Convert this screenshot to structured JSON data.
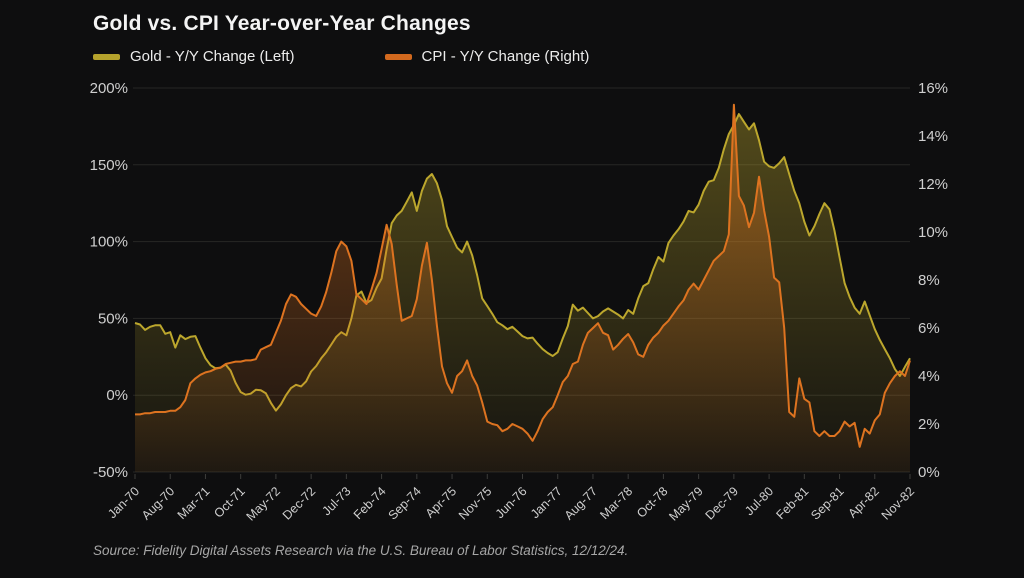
{
  "title": "Gold vs. CPI Year-over-Year Changes",
  "legend": [
    {
      "label": "Gold - Y/Y Change (Left)",
      "color": "#b5a22c"
    },
    {
      "label": "CPI - Y/Y Change (Right)",
      "color": "#d2691e"
    }
  ],
  "source": "Source: Fidelity Digital Assets Research via the U.S. Bureau of Labor Statistics, 12/12/24.",
  "colors": {
    "background": "#0e0e0f",
    "gridline": "#272725",
    "axis_text": "#cfcfcf",
    "gold_line": "#bca72d",
    "cpi_line": "#dd7320"
  },
  "chart_data": {
    "type": "line",
    "title": "Gold vs. CPI Year-over-Year Changes",
    "x_start": "Jan-1970",
    "x_end": "Nov-1982",
    "x_tick_every_months": 7,
    "x_labels": [
      "Jan-70",
      "Aug-70",
      "Mar-71",
      "Oct-71",
      "May-72",
      "Dec-72",
      "Jul-73",
      "Feb-74",
      "Sep-74",
      "Apr-75",
      "Nov-75",
      "Jun-76",
      "Jan-77",
      "Aug-77",
      "Mar-78",
      "Oct-78",
      "May-79",
      "Dec-79",
      "Jul-80",
      "Feb-81",
      "Sep-81",
      "Apr-82",
      "Nov-82"
    ],
    "left_axis": {
      "min": -50,
      "max": 200,
      "tick_values": [
        200,
        150,
        100,
        50,
        0,
        -50
      ],
      "tick_labels": [
        "200%",
        "150%",
        "100%",
        "50%",
        "0%",
        "-50%"
      ]
    },
    "right_axis": {
      "min": 0,
      "max": 16,
      "tick_values": [
        16,
        14,
        12,
        10,
        8,
        6,
        4,
        2,
        0
      ],
      "tick_labels": [
        "16%",
        "14%",
        "12%",
        "10%",
        "8%",
        "6%",
        "4%",
        "2%",
        "0%"
      ]
    },
    "grid": "horizontal-only",
    "legend_position": "top-left",
    "series": [
      {
        "name": "Gold - Y/Y Change (Left)",
        "axis": "left",
        "unit": "%",
        "color": "#bca72d",
        "values": [
          47,
          46,
          42.5,
          44.5,
          45.5,
          45.5,
          40,
          41,
          31,
          39,
          36.5,
          38,
          38.5,
          31,
          24,
          19.5,
          17.5,
          18,
          20,
          16,
          8,
          2,
          0.3,
          1,
          3.5,
          3.2,
          1.3,
          -5,
          -10,
          -6,
          0,
          4.6,
          6.8,
          5.7,
          9,
          15.4,
          19,
          24,
          28,
          33,
          38,
          41,
          39,
          50,
          65,
          67.5,
          60,
          62,
          70,
          76,
          95,
          112,
          117,
          120,
          126,
          132,
          120,
          133,
          141,
          144,
          138,
          127,
          110,
          103,
          96,
          93,
          100,
          91,
          78,
          63,
          58,
          53,
          47.5,
          45.5,
          43,
          44.5,
          41.5,
          38.5,
          37,
          37.5,
          33.5,
          30,
          27.5,
          25.5,
          28,
          37,
          45,
          59,
          55,
          57,
          53.5,
          50,
          51.5,
          54.5,
          56.5,
          54.5,
          52.5,
          50,
          55.5,
          53,
          63,
          71,
          73,
          82,
          90,
          87,
          99,
          104,
          108,
          113,
          120,
          119,
          124,
          133,
          139,
          140,
          148,
          160,
          170,
          176,
          183,
          178,
          173,
          177,
          166,
          152,
          149,
          148,
          151,
          155,
          144,
          133,
          125,
          113,
          104,
          110,
          118,
          125,
          121,
          107,
          90,
          73,
          64,
          57,
          53,
          61,
          52,
          43,
          36,
          30,
          24,
          17,
          12.5,
          18.5,
          24
        ]
      },
      {
        "name": "CPI - Y/Y Change (Right)",
        "axis": "right",
        "unit": "%",
        "color": "#dd7320",
        "values": [
          2.4,
          2.4,
          2.45,
          2.45,
          2.5,
          2.5,
          2.5,
          2.55,
          2.55,
          2.7,
          3.0,
          3.7,
          3.9,
          4.05,
          4.15,
          4.2,
          4.3,
          4.35,
          4.5,
          4.55,
          4.6,
          4.6,
          4.65,
          4.65,
          4.7,
          5.1,
          5.2,
          5.3,
          5.8,
          6.3,
          7.0,
          7.4,
          7.3,
          7.0,
          6.8,
          6.6,
          6.5,
          6.9,
          7.5,
          8.3,
          9.2,
          9.6,
          9.4,
          8.8,
          7.4,
          7.2,
          7.0,
          7.6,
          8.3,
          9.3,
          10.3,
          9.5,
          7.8,
          6.3,
          6.4,
          6.5,
          7.2,
          8.6,
          9.55,
          8.0,
          6.1,
          4.4,
          3.7,
          3.3,
          4.0,
          4.2,
          4.65,
          4.0,
          3.6,
          2.9,
          2.1,
          2.0,
          1.95,
          1.7,
          1.8,
          2.0,
          1.9,
          1.8,
          1.6,
          1.3,
          1.7,
          2.2,
          2.5,
          2.7,
          3.2,
          3.75,
          4.0,
          4.5,
          4.6,
          5.3,
          5.8,
          6.0,
          6.2,
          5.8,
          5.7,
          5.1,
          5.3,
          5.55,
          5.75,
          5.4,
          4.9,
          4.8,
          5.3,
          5.6,
          5.8,
          6.1,
          6.3,
          6.6,
          6.9,
          7.15,
          7.6,
          7.85,
          7.6,
          8.0,
          8.4,
          8.8,
          9.0,
          9.2,
          9.9,
          15.3,
          11.5,
          11.1,
          10.2,
          10.8,
          12.3,
          10.9,
          9.8,
          8.1,
          7.9,
          6.0,
          2.5,
          2.3,
          3.9,
          3.05,
          2.9,
          1.7,
          1.5,
          1.7,
          1.5,
          1.5,
          1.7,
          2.1,
          1.9,
          2.05,
          1.05,
          1.8,
          1.6,
          2.15,
          2.4,
          3.3,
          3.7,
          4.0,
          4.2,
          4.0,
          4.65
        ]
      }
    ]
  }
}
